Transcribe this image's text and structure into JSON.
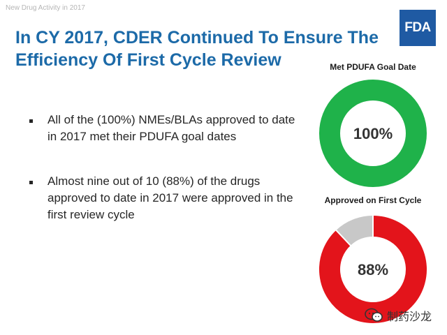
{
  "header": {
    "label": "New Drug Activity in 2017"
  },
  "logo": {
    "text": "FDA",
    "color": "#1f5aa3"
  },
  "slide": {
    "title": "In CY 2017, CDER Continued To Ensure The Efficiency Of First Cycle Review",
    "title_color": "#1c6aa8"
  },
  "bullets": [
    {
      "text": "All of the (100%) NMEs/BLAs approved to date in 2017 met their PDUFA goal dates"
    },
    {
      "text": "Almost nine out of 10 (88%) of the drugs approved to date in 2017 were approved in the first review cycle"
    }
  ],
  "chart_data": [
    {
      "type": "pie",
      "title": "Met PDUFA Goal Date",
      "center_label": "100%",
      "slices": [
        {
          "value": 100,
          "color": "#1fb24a"
        }
      ]
    },
    {
      "type": "pie",
      "title": "Approved on First Cycle",
      "center_label": "88%",
      "slices": [
        {
          "value": 88,
          "color": "#e3141b"
        },
        {
          "value": 12,
          "color": "#c8c8c8"
        }
      ]
    }
  ],
  "watermark": {
    "text": "制药沙龙"
  }
}
